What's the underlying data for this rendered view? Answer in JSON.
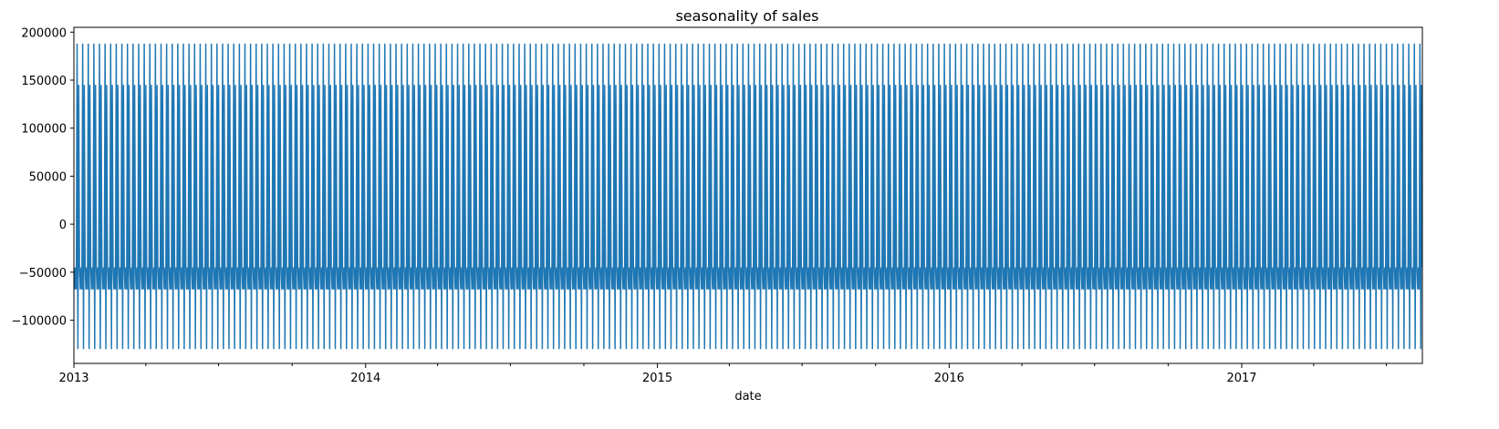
{
  "chart_data": {
    "type": "line",
    "title": "seasonality of sales",
    "xlabel": "date",
    "ylabel": "",
    "x_range": [
      "2013-01-01",
      "2017-08-15"
    ],
    "ylim": [
      -145000,
      205000
    ],
    "y_ticks": [
      -100000,
      -50000,
      0,
      50000,
      100000,
      150000,
      200000
    ],
    "y_tick_labels": [
      "−100000",
      "−50000",
      "0",
      "50000",
      "100000",
      "150000",
      "200000"
    ],
    "x_major_ticks": [
      "2013-01-01",
      "2014-01-01",
      "2015-01-01",
      "2016-01-01",
      "2017-01-01"
    ],
    "x_major_tick_labels": [
      "2013",
      "2014",
      "2015",
      "2016",
      "2017"
    ],
    "x_minor_ticks": "quarterly",
    "grid": false,
    "legend": "none",
    "series": [
      {
        "period": "weekly",
        "weekly_pattern": [
          -45000,
          -68000,
          -45000,
          -68000,
          188000,
          -130000,
          145000
        ],
        "color": "#1f77b4"
      }
    ]
  }
}
